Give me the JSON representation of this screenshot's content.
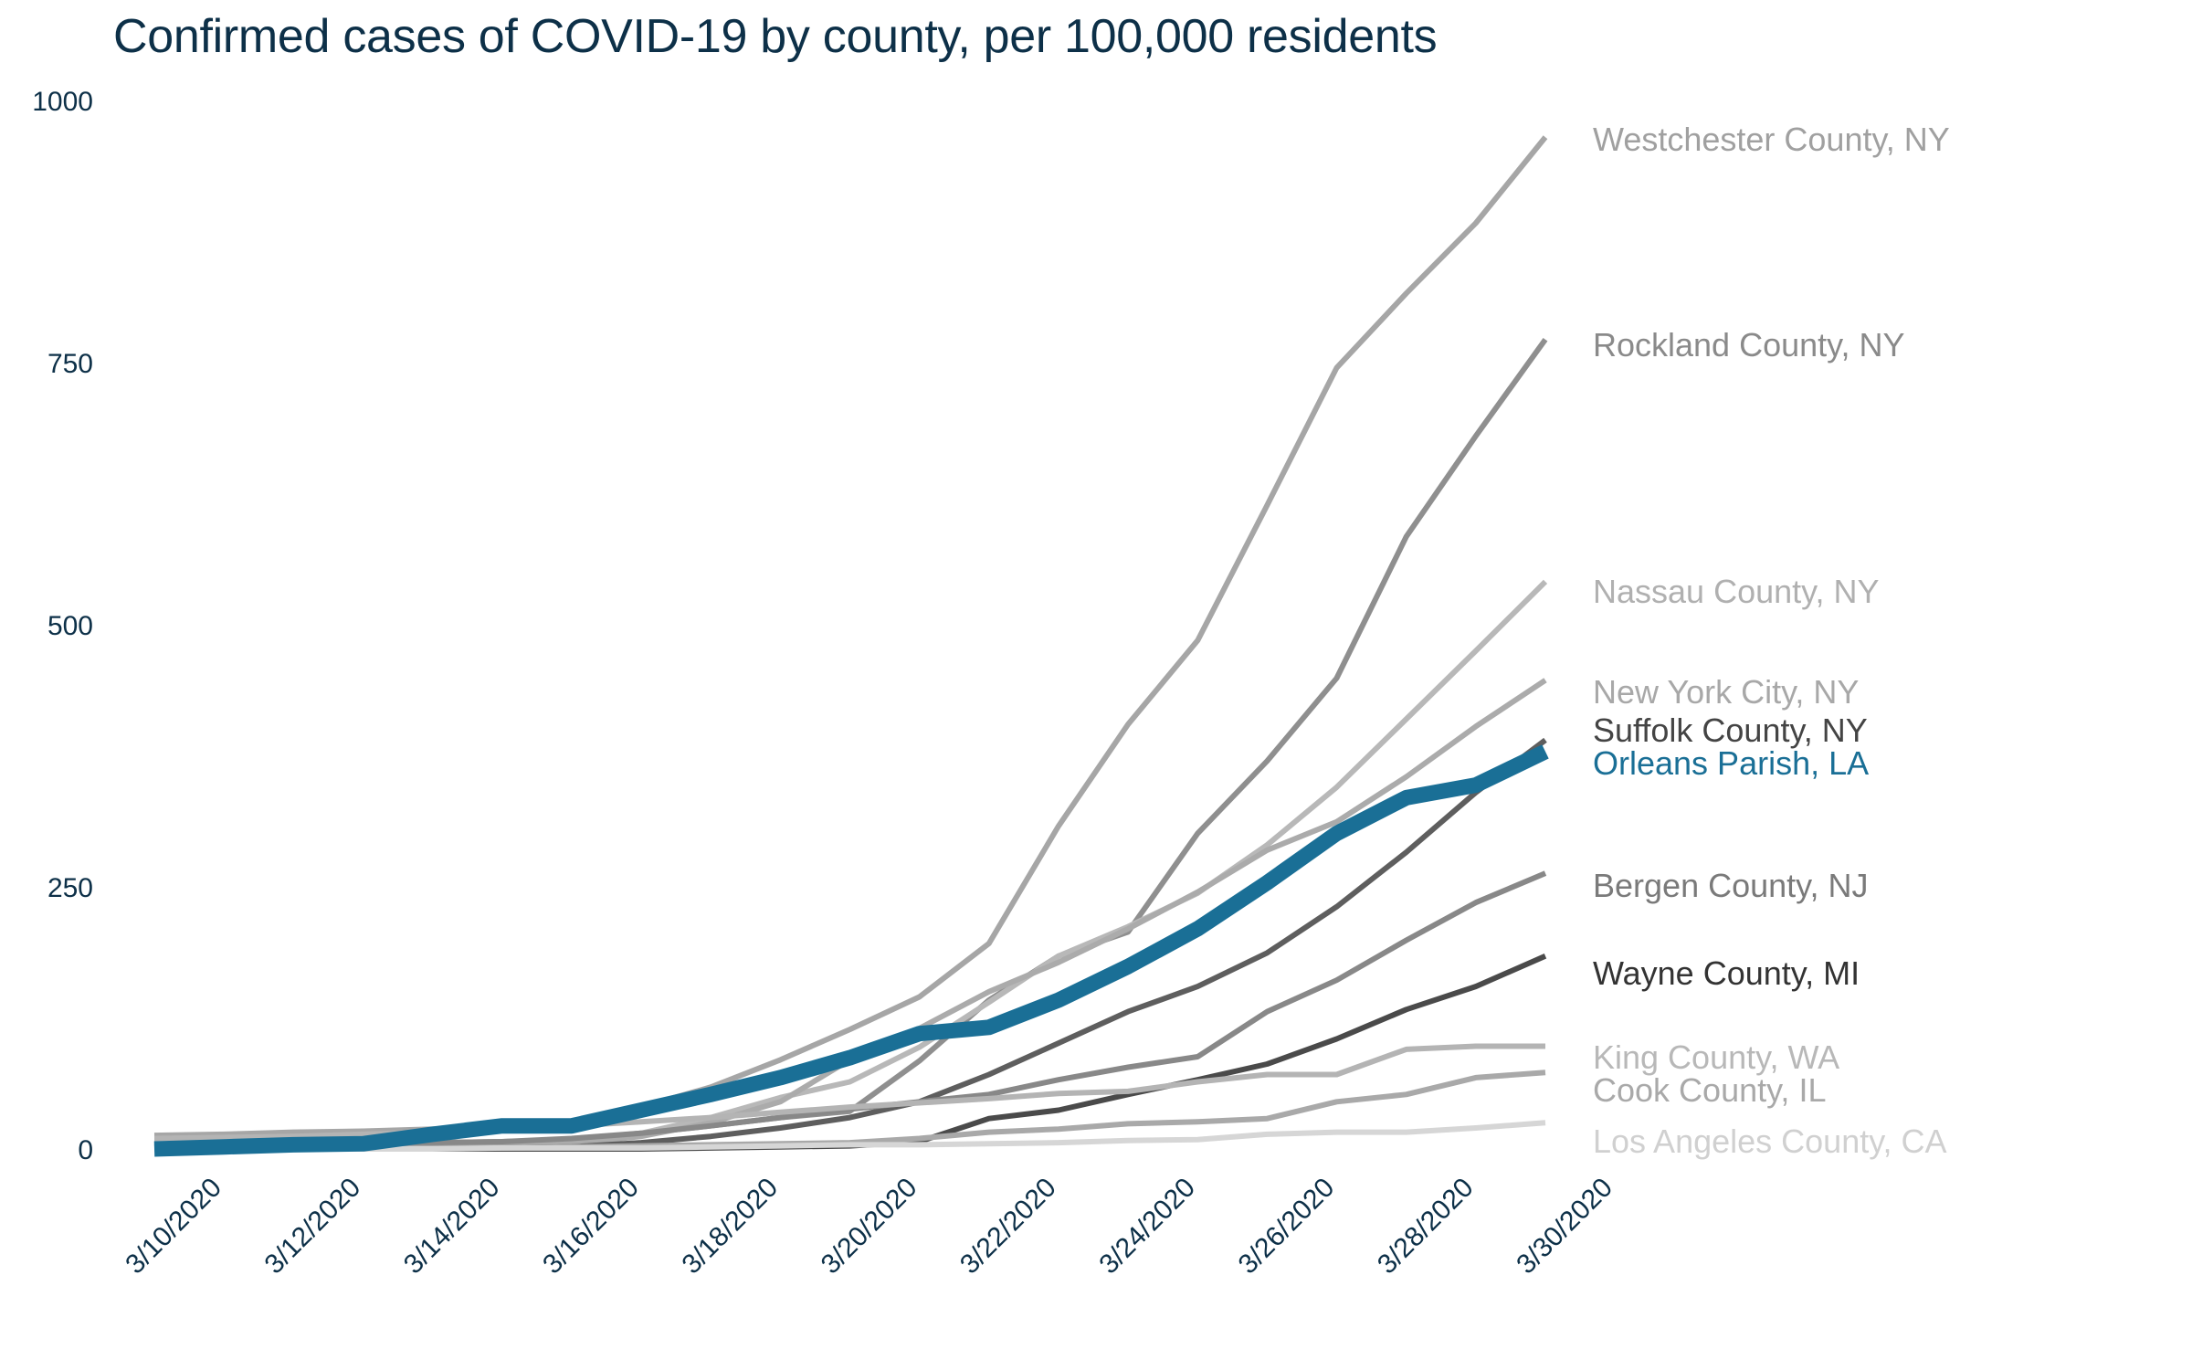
{
  "chart_data": {
    "type": "line",
    "title": "Confirmed cases of COVID-19 by county, per 100,000 residents",
    "xlabel": "",
    "ylabel": "",
    "ylim": [
      0,
      1000
    ],
    "yticks": [
      0,
      250,
      500,
      750,
      1000
    ],
    "grid": false,
    "legend": "direct labels at right end of lines",
    "x": [
      "3/10/2020",
      "3/11/2020",
      "3/12/2020",
      "3/13/2020",
      "3/14/2020",
      "3/15/2020",
      "3/16/2020",
      "3/17/2020",
      "3/18/2020",
      "3/19/2020",
      "3/20/2020",
      "3/21/2020",
      "3/22/2020",
      "3/23/2020",
      "3/24/2020",
      "3/25/2020",
      "3/26/2020",
      "3/27/2020",
      "3/28/2020",
      "3/29/2020",
      "3/30/2020"
    ],
    "xtick_labels": [
      "3/10/2020",
      "3/12/2020",
      "3/14/2020",
      "3/16/2020",
      "3/18/2020",
      "3/20/2020",
      "3/22/2020",
      "3/24/2020",
      "3/26/2020",
      "3/28/2020",
      "3/30/2020"
    ],
    "series": [
      {
        "name": "Westchester County, NY",
        "color": "#a6a6a6",
        "label_color": "#a0a0a0",
        "highlight": false,
        "values": [
          13,
          14,
          16,
          17,
          19,
          21,
          25,
          40,
          59,
          85,
          114,
          145,
          196,
          308,
          405,
          485,
          614,
          745,
          816,
          883,
          965
        ]
      },
      {
        "name": "Rockland County, NY",
        "color": "#8f8f8f",
        "label_color": "#8a8a8a",
        "highlight": false,
        "values": [
          2,
          3,
          4,
          5,
          6,
          7,
          9,
          15,
          22,
          30,
          36,
          84,
          142,
          184,
          207,
          301,
          370,
          449,
          584,
          680,
          772
        ]
      },
      {
        "name": "Nassau County, NY",
        "color": "#b8b8b8",
        "label_color": "#b0b0b0",
        "highlight": false,
        "values": [
          1,
          1,
          2,
          3,
          4,
          5,
          7,
          15,
          30,
          49,
          64,
          97,
          140,
          184,
          212,
          244,
          290,
          345,
          410,
          475,
          541
        ]
      },
      {
        "name": "New York City, NY",
        "color": "#ababab",
        "label_color": "#a8a8a8",
        "highlight": false,
        "values": [
          0,
          0,
          1,
          1,
          2,
          3,
          5,
          12,
          25,
          45,
          85,
          115,
          150,
          178,
          210,
          245,
          285,
          312,
          355,
          403,
          447
        ]
      },
      {
        "name": "Suffolk County, NY",
        "color": "#5e5e5e",
        "label_color": "#444444",
        "highlight": false,
        "values": [
          0,
          0,
          0,
          0,
          0,
          1,
          2,
          6,
          12,
          20,
          30,
          45,
          71,
          101,
          131,
          155,
          187,
          231,
          283,
          340,
          390
        ]
      },
      {
        "name": "Bergen County, NJ",
        "color": "#888888",
        "label_color": "#7a7a7a",
        "highlight": false,
        "values": [
          2,
          3,
          4,
          5,
          6,
          7,
          10,
          15,
          22,
          30,
          38,
          45,
          52,
          66,
          78,
          88,
          131,
          161,
          199,
          235,
          263
        ]
      },
      {
        "name": "Wayne County, MI",
        "color": "#4a4a4a",
        "label_color": "#333333",
        "highlight": false,
        "values": [
          0,
          0,
          0,
          0,
          0,
          0,
          0,
          0,
          1,
          2,
          3,
          7,
          29,
          37,
          52,
          66,
          81,
          105,
          133,
          155,
          184
        ]
      },
      {
        "name": "King County, WA",
        "color": "#b4b4b4",
        "label_color": "#b8b8b8",
        "highlight": false,
        "values": [
          10,
          11,
          12,
          14,
          16,
          18,
          22,
          26,
          30,
          35,
          40,
          44,
          48,
          53,
          55,
          64,
          71,
          71,
          95,
          98,
          98
        ]
      },
      {
        "name": "Cook County, IL",
        "color": "#a9a9a9",
        "label_color": "#a9a9a9",
        "highlight": false,
        "values": [
          0,
          0,
          0,
          1,
          1,
          1,
          2,
          3,
          4,
          5,
          6,
          10,
          16,
          19,
          24,
          26,
          29,
          45,
          52,
          68,
          73
        ]
      },
      {
        "name": "Los Angeles County, CA",
        "color": "#d6d6d6",
        "label_color": "#d0d0d0",
        "highlight": false,
        "values": [
          0,
          0,
          0,
          0,
          0,
          1,
          1,
          1,
          2,
          3,
          4,
          4,
          5,
          6,
          8,
          9,
          14,
          16,
          16,
          20,
          25
        ]
      },
      {
        "name": "Orleans Parish, LA",
        "color": "#1a6f96",
        "label_color": "#1a6f96",
        "highlight": true,
        "values": [
          0,
          2,
          4,
          5,
          14,
          22,
          22,
          37,
          52,
          68,
          87,
          110,
          116,
          142,
          174,
          210,
          254,
          301,
          335,
          347,
          379
        ]
      }
    ],
    "label_order_top_to_bottom": [
      "Westchester County, NY",
      "Rockland County, NY",
      "Nassau County, NY",
      "New York City, NY",
      "Suffolk County, NY",
      "Orleans Parish, LA",
      "Bergen County, NJ",
      "Wayne County, MI",
      "King County, WA",
      "Cook County, IL",
      "Los Angeles County, CA"
    ]
  }
}
